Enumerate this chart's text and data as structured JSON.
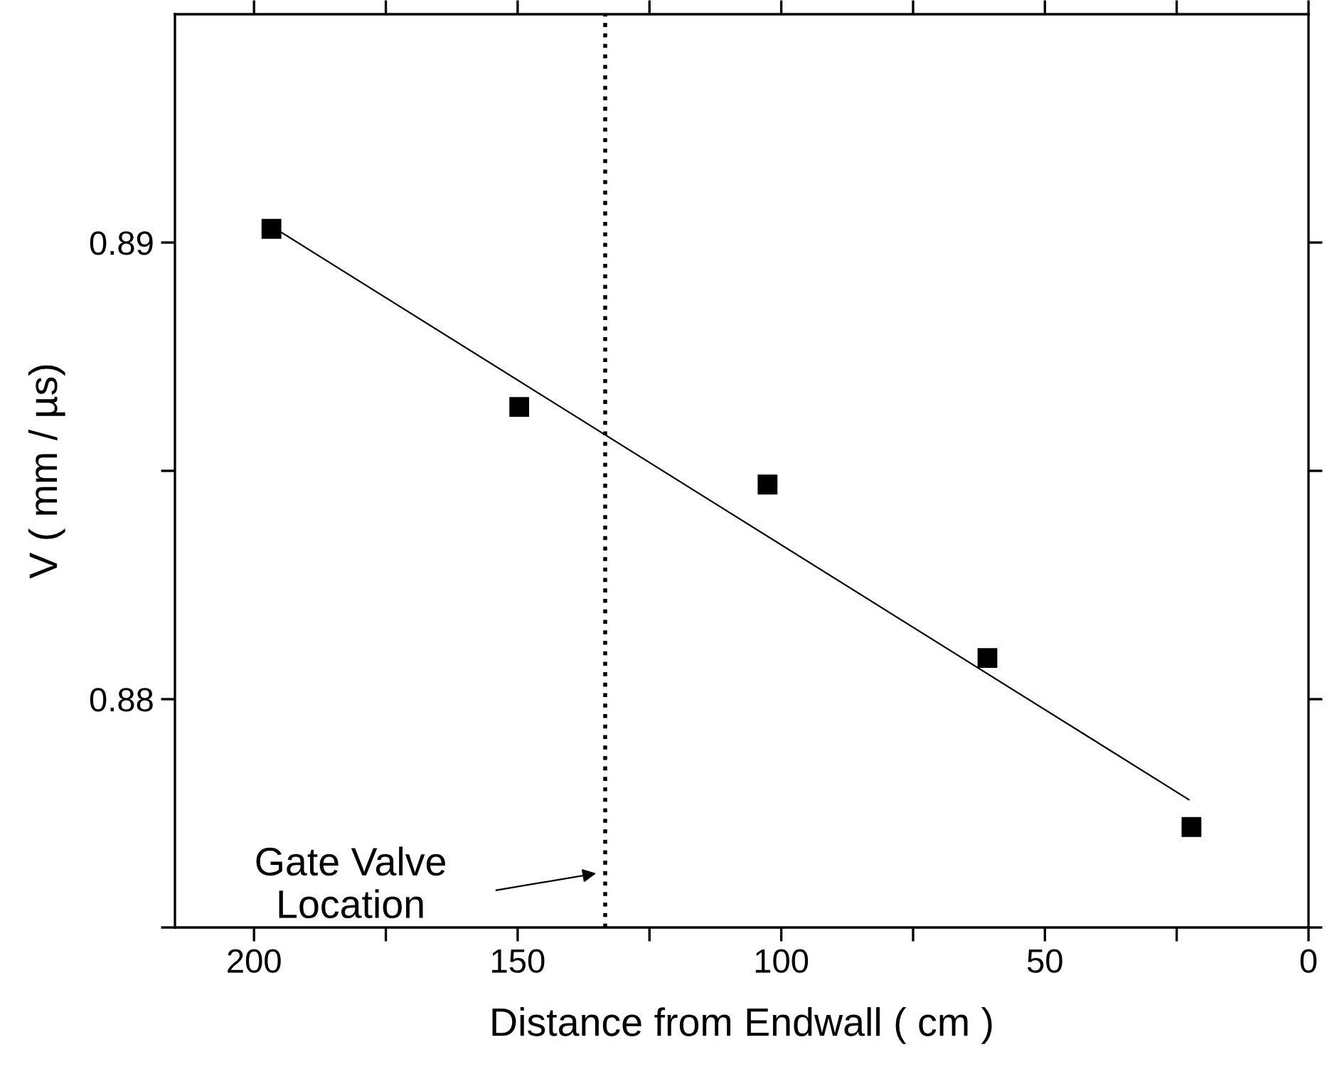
{
  "chart_data": {
    "type": "scatter",
    "xlabel": "Distance from Endwall ( cm )",
    "ylabel": "V ( mm / µs)",
    "xlim": [
      215,
      0
    ],
    "ylim": [
      0.875,
      0.895
    ],
    "xticks": [
      200,
      {
        "value": 175,
        "label": null
      },
      150,
      {
        "value": 125,
        "label": null
      },
      100,
      {
        "value": 75,
        "label": null
      },
      50,
      {
        "value": 25,
        "label": null
      },
      0
    ],
    "yticks": [
      {
        "value": 0.875,
        "label": null
      },
      0.88,
      {
        "value": 0.885,
        "label": null
      },
      0.89
    ],
    "grid": false,
    "marker": "square",
    "series": [
      {
        "color": "#000000",
        "x": [
          196.7,
          149.7,
          102.6,
          60.9,
          22.2
        ],
        "values": [
          0.8903,
          0.8864,
          0.8847,
          0.8809,
          0.8772
        ]
      },
      {
        "type": "line",
        "color": "#000000",
        "marker": "none",
        "x": [
          195.9,
          22.7
        ],
        "values": [
          0.8903,
          0.8778
        ]
      }
    ],
    "ref_lines": [
      {
        "axis": "x",
        "value": 133.4,
        "color": "#000000",
        "line_style": "dotted"
      }
    ],
    "annotations": [
      "Gate Valve\nLocation"
    ]
  }
}
